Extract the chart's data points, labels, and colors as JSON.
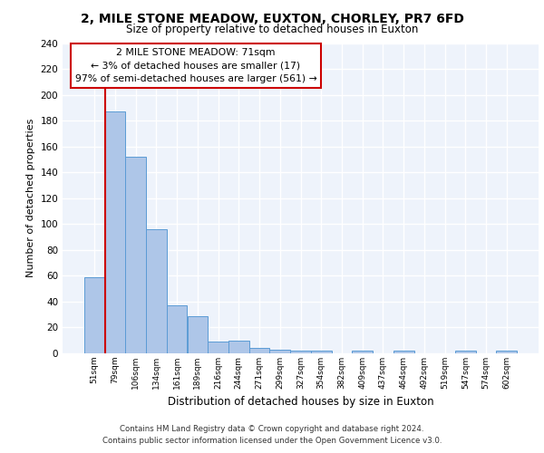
{
  "title": "2, MILE STONE MEADOW, EUXTON, CHORLEY, PR7 6FD",
  "subtitle": "Size of property relative to detached houses in Euxton",
  "xlabel": "Distribution of detached houses by size in Euxton",
  "ylabel": "Number of detached properties",
  "bar_values": [
    59,
    187,
    152,
    96,
    37,
    29,
    9,
    10,
    4,
    3,
    2,
    2,
    0,
    2,
    0,
    2,
    0,
    0,
    2,
    0,
    2
  ],
  "bar_labels": [
    "51sqm",
    "79sqm",
    "106sqm",
    "134sqm",
    "161sqm",
    "189sqm",
    "216sqm",
    "244sqm",
    "271sqm",
    "299sqm",
    "327sqm",
    "354sqm",
    "382sqm",
    "409sqm",
    "437sqm",
    "464sqm",
    "492sqm",
    "519sqm",
    "547sqm",
    "574sqm",
    "602sqm"
  ],
  "bar_color": "#aec6e8",
  "bar_edge_color": "#5b9bd5",
  "annotation_text_line1": "2 MILE STONE MEADOW: 71sqm",
  "annotation_text_line2": "← 3% of detached houses are smaller (17)",
  "annotation_text_line3": "97% of semi-detached houses are larger (561) →",
  "red_line_color": "#cc0000",
  "annotation_box_color": "#ffffff",
  "annotation_box_edge": "#cc0000",
  "background_color": "#eef3fb",
  "grid_color": "#ffffff",
  "ylim": [
    0,
    240
  ],
  "yticks": [
    0,
    20,
    40,
    60,
    80,
    100,
    120,
    140,
    160,
    180,
    200,
    220,
    240
  ],
  "footer_line1": "Contains HM Land Registry data © Crown copyright and database right 2024.",
  "footer_line2": "Contains public sector information licensed under the Open Government Licence v3.0."
}
